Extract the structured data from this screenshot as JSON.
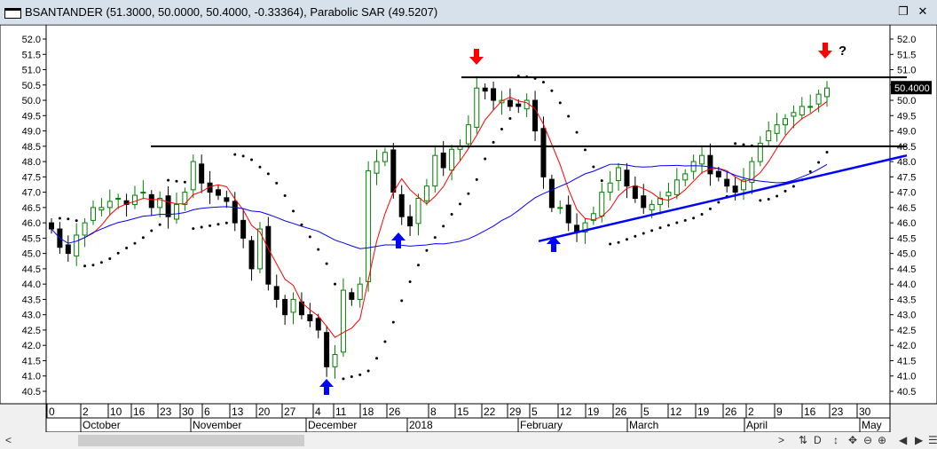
{
  "window": {
    "title": "BSANTANDER (51.3000, 50.0000, 50.4000, -0.33364), Parabolic SAR (49.5207)",
    "restore_icon": "restore-icon",
    "close_icon": "close-icon"
  },
  "chart_data": {
    "type": "candlestick",
    "symbol": "BSANTANDER",
    "last_price_label": "50.4000",
    "ylim": [
      40.5,
      52.0
    ],
    "y_ticks": [
      "52.0",
      "51.5",
      "51.0",
      "50.5",
      "50.0",
      "49.5",
      "49.0",
      "48.5",
      "48.0",
      "47.5",
      "47.0",
      "46.5",
      "46.0",
      "45.5",
      "45.0",
      "44.5",
      "44.0",
      "43.5",
      "43.0",
      "42.5",
      "42.0",
      "41.5",
      "41.0",
      "40.5"
    ],
    "x_day_ticks": [
      "0",
      "2",
      "10",
      "16",
      "23",
      "30",
      "6",
      "13",
      "20",
      "27",
      "4",
      "11",
      "18",
      "26",
      "8",
      "15",
      "22",
      "29",
      "5",
      "12",
      "19",
      "26",
      "5",
      "12",
      "19",
      "26",
      "2",
      "9",
      "16",
      "23",
      "30"
    ],
    "x_month_ticks": [
      "October",
      "November",
      "December",
      "2018",
      "February",
      "March",
      "April",
      "May"
    ],
    "closes": [
      45.8,
      45.2,
      45.0,
      45.6,
      46.0,
      46.5,
      46.5,
      46.7,
      46.8,
      46.6,
      46.9,
      47.0,
      46.5,
      46.8,
      46.2,
      46.6,
      47.0,
      48.0,
      47.3,
      47.0,
      46.9,
      46.7,
      46.0,
      45.5,
      44.5,
      45.8,
      44.0,
      43.5,
      43.0,
      43.5,
      43.0,
      42.8,
      42.5,
      41.3,
      41.7,
      43.8,
      43.5,
      44.0,
      47.7,
      48.0,
      48.3,
      47.0,
      46.2,
      45.9,
      46.8,
      47.2,
      48.2,
      47.8,
      48.4,
      48.5,
      49.2,
      50.4,
      50.3,
      50.0,
      50.0,
      49.8,
      49.8,
      50.0,
      49.0,
      47.5,
      46.5,
      46.5,
      46.0,
      45.7,
      46.0,
      46.3,
      47.0,
      47.3,
      47.8,
      47.2,
      46.8,
      46.5,
      46.6,
      46.8,
      47.0,
      47.4,
      47.6,
      48.0,
      48.2,
      47.6,
      47.5,
      47.2,
      47.0,
      47.4,
      48.0,
      48.6,
      49.0,
      49.2,
      49.4,
      49.6,
      49.8,
      49.8,
      50.2,
      50.4
    ],
    "indicators": [
      "Parabolic SAR (49.5207)",
      "short moving average",
      "long moving average"
    ],
    "colors": {
      "up": "#008000",
      "down": "#000000",
      "sar": "#000000",
      "ma_short": "#ff0000",
      "ma_long": "#0000ff",
      "trendline": "#0000ff",
      "signal_down": "#ff0000",
      "signal_up": "#0000ff"
    },
    "horizontal_lines": [
      50.75,
      48.5
    ],
    "trendline": {
      "from": [
        45.4,
        "Feb 5"
      ],
      "to": [
        48.2,
        "end"
      ]
    },
    "annotations": {
      "down_arrows": 2,
      "up_arrows": 3,
      "question_mark": "?"
    }
  },
  "toolbar": {
    "buttons": [
      "scroll-left",
      "scroll-right",
      "sync",
      "D",
      "resize-vertical",
      "move",
      "zoom-out",
      "zoom-in",
      "previous",
      "next",
      "menu"
    ],
    "D_label": "D",
    "left": "<",
    "right": ">"
  }
}
